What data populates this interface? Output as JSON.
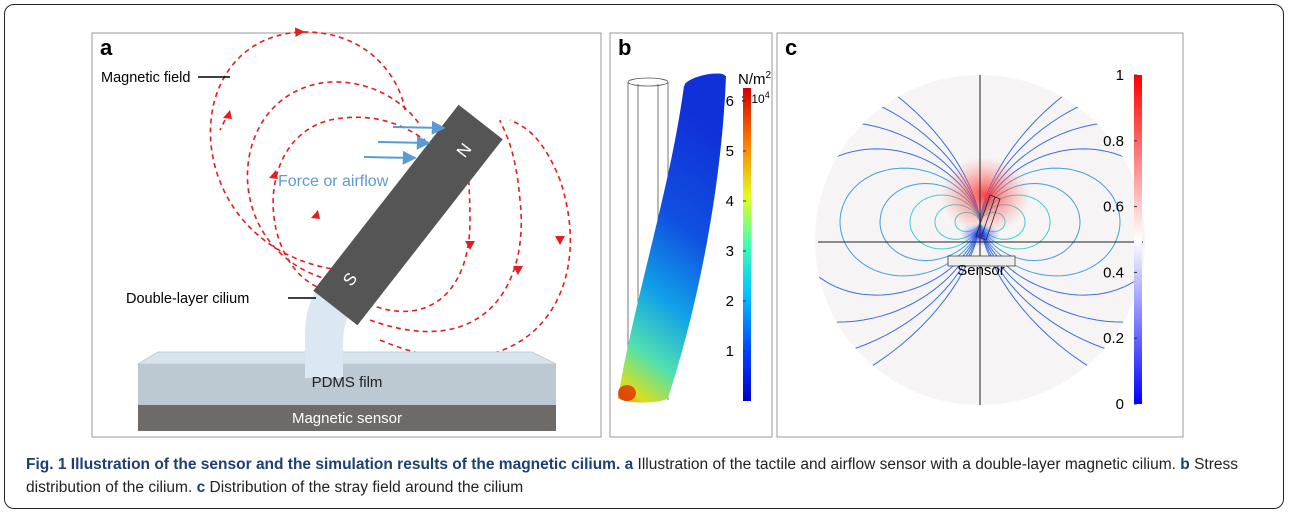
{
  "panel_a": {
    "label": "a",
    "magnetic_field": "Magnetic field",
    "force": "Force or airflow",
    "north": "N",
    "south": "S",
    "cilium": "Double-layer cilium",
    "film": "PDMS film",
    "sensor": "Magnetic sensor"
  },
  "panel_b": {
    "label": "b",
    "unit": "N/m",
    "unit_exp": "2",
    "scale": "× 10",
    "scale_exp": "4",
    "colorbar": {
      "range": [
        0,
        6.26
      ],
      "ticks": [
        1,
        2,
        3,
        4,
        5,
        6
      ]
    }
  },
  "panel_c": {
    "label": "c",
    "sensor": "Sensor",
    "colorbar": {
      "range": [
        0,
        1
      ],
      "ticks": [
        0,
        0.2,
        0.4,
        0.6,
        0.8,
        1
      ]
    }
  },
  "caption": {
    "title": "Fig. 1 Illustration of the sensor and the simulation results of the magnetic cilium.",
    "a_label": "a",
    "a_text": "Illustration of the tactile and airflow sensor with a double-layer magnetic cilium.",
    "b_label": "b",
    "b_text": "Stress distribution of the cilium.",
    "c_label": "c",
    "c_text": "Distribution of the stray field around the cilium"
  }
}
